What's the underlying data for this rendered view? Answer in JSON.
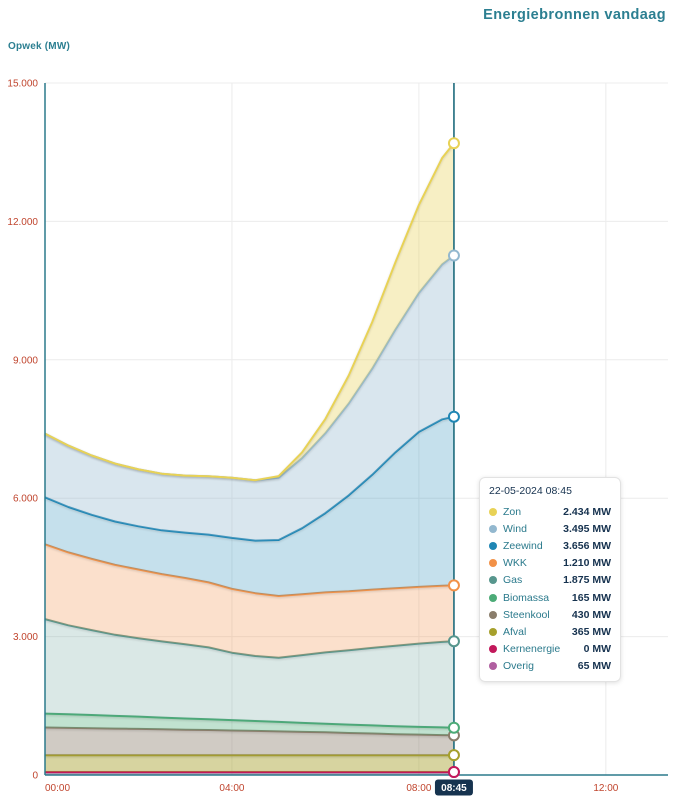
{
  "page": {
    "title": "Energiebronnen vandaag"
  },
  "axis": {
    "y_label": "Opwek (MW)",
    "y_tick_labels": [
      "0",
      "3.000",
      "6.000",
      "9.000",
      "12.000",
      "15.000"
    ],
    "x_tick_labels": [
      "00:00",
      "04:00",
      "08:00",
      "12:00"
    ],
    "current_time_label": "08:45"
  },
  "tooltip": {
    "header": "22-05-2024 08:45",
    "rows": [
      {
        "name": "Zon",
        "value": "2.434 MW",
        "color": "#e8d256"
      },
      {
        "name": "Wind",
        "value": "3.495 MW",
        "color": "#93b8cf"
      },
      {
        "name": "Zeewind",
        "value": "3.656 MW",
        "color": "#1f86b4"
      },
      {
        "name": "WKK",
        "value": "1.210 MW",
        "color": "#f29147"
      },
      {
        "name": "Gas",
        "value": "1.875 MW",
        "color": "#57968d"
      },
      {
        "name": "Biomassa",
        "value": "165 MW",
        "color": "#4cab77"
      },
      {
        "name": "Steenkool",
        "value": "430 MW",
        "color": "#8a7d6b"
      },
      {
        "name": "Afval",
        "value": "365 MW",
        "color": "#a6a02c"
      },
      {
        "name": "Kernenergie",
        "value": "0 MW",
        "color": "#c2185b"
      },
      {
        "name": "Overig",
        "value": "65 MW",
        "color": "#b05fa0"
      }
    ]
  },
  "colors": {
    "axis": "#2b7a8c",
    "tick_label": "#c0452e",
    "grid": "#ececec",
    "current_line": "#1d6b7c",
    "badge_bg": "#16334f",
    "badge_text": "#ffffff"
  },
  "chart_data": {
    "type": "area",
    "stacked": true,
    "title": "Energiebronnen vandaag",
    "ylabel": "Opwek (MW)",
    "xlabel": "",
    "ylim": [
      0,
      15000
    ],
    "yticks": [
      0,
      3000,
      6000,
      9000,
      12000,
      15000
    ],
    "xlim_hours": [
      0,
      13.33
    ],
    "xticks_hours": [
      0,
      4,
      8,
      12
    ],
    "current_hour": 8.75,
    "x_hours": [
      0,
      0.5,
      1,
      1.5,
      2,
      2.5,
      3,
      3.5,
      4,
      4.5,
      5,
      5.5,
      6,
      6.5,
      7,
      7.5,
      8,
      8.5,
      8.75
    ],
    "series_bottom_to_top": [
      {
        "name": "Overig",
        "color": "#b05fa0",
        "fill": "rgba(176,95,160,0.5)",
        "values": [
          65,
          65,
          65,
          65,
          65,
          65,
          65,
          65,
          65,
          65,
          65,
          65,
          65,
          65,
          65,
          65,
          65,
          65,
          65
        ]
      },
      {
        "name": "Kernenergie",
        "color": "#c2185b",
        "fill": "rgba(194,24,91,0.5)",
        "values": [
          0,
          0,
          0,
          0,
          0,
          0,
          0,
          0,
          0,
          0,
          0,
          0,
          0,
          0,
          0,
          0,
          0,
          0,
          0
        ]
      },
      {
        "name": "Afval",
        "color": "#a6a02c",
        "fill": "rgba(166,160,44,0.45)",
        "values": [
          365,
          365,
          365,
          365,
          365,
          365,
          365,
          365,
          365,
          365,
          365,
          365,
          365,
          365,
          365,
          365,
          365,
          365,
          365
        ]
      },
      {
        "name": "Steenkool",
        "color": "#8a7d6b",
        "fill": "rgba(138,125,107,0.4)",
        "values": [
          600,
          590,
          585,
          575,
          570,
          560,
          550,
          545,
          535,
          525,
          515,
          505,
          495,
          480,
          470,
          455,
          445,
          435,
          430
        ]
      },
      {
        "name": "Biomassa",
        "color": "#4cab77",
        "fill": "rgba(76,171,119,0.35)",
        "values": [
          300,
          295,
          285,
          275,
          265,
          255,
          245,
          235,
          225,
          215,
          205,
          195,
          188,
          182,
          176,
          172,
          168,
          166,
          165
        ]
      },
      {
        "name": "Gas",
        "color": "#57968d",
        "fill": "rgba(87,150,141,0.22)",
        "values": [
          2050,
          1930,
          1840,
          1760,
          1700,
          1650,
          1610,
          1555,
          1460,
          1410,
          1390,
          1470,
          1545,
          1610,
          1680,
          1745,
          1805,
          1855,
          1875
        ]
      },
      {
        "name": "WKK",
        "color": "#f29147",
        "fill": "rgba(242,145,71,0.28)",
        "values": [
          1620,
          1580,
          1545,
          1515,
          1490,
          1460,
          1435,
          1410,
          1385,
          1360,
          1340,
          1320,
          1300,
          1280,
          1262,
          1245,
          1230,
          1215,
          1210
        ]
      },
      {
        "name": "Zeewind",
        "color": "#1f86b4",
        "fill": "rgba(31,134,180,0.26)",
        "values": [
          1020,
          985,
          955,
          940,
          935,
          950,
          985,
          1035,
          1105,
          1140,
          1215,
          1430,
          1720,
          2080,
          2490,
          2950,
          3360,
          3610,
          3656
        ]
      },
      {
        "name": "Wind",
        "color": "#93b8cf",
        "fill": "rgba(147,184,207,0.35)",
        "values": [
          1380,
          1330,
          1285,
          1255,
          1235,
          1225,
          1235,
          1265,
          1305,
          1310,
          1350,
          1520,
          1730,
          1990,
          2300,
          2660,
          3010,
          3360,
          3495
        ]
      },
      {
        "name": "Zon",
        "color": "#e8d256",
        "fill": "rgba(232,210,86,0.35)",
        "values": [
          0,
          0,
          0,
          0,
          0,
          0,
          0,
          0,
          0,
          0,
          35,
          125,
          310,
          610,
          1010,
          1460,
          1910,
          2310,
          2434
        ]
      }
    ]
  }
}
